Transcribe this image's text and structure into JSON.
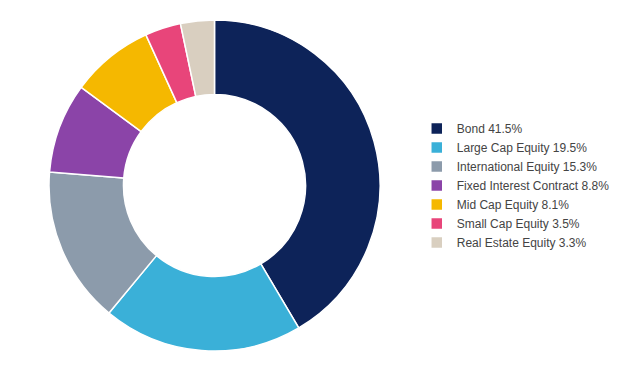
{
  "chart_data": {
    "type": "pie",
    "categories": [
      "Bond 41.5%",
      "Large Cap Equity 19.5%",
      "International Equity 15.3%",
      "Fixed Interest Contract 8.8%",
      "Mid Cap Equity 8.1%",
      "Small Cap Equity 3.5%",
      "Real Estate Equity 3.3%"
    ],
    "values": [
      41.5,
      19.5,
      15.3,
      8.8,
      8.1,
      3.5,
      3.3
    ],
    "colors": [
      "#0d2359",
      "#3ab0d8",
      "#8c9bab",
      "#8b44a8",
      "#f5b800",
      "#e8457a",
      "#d9cfc0"
    ],
    "legend": "right"
  }
}
